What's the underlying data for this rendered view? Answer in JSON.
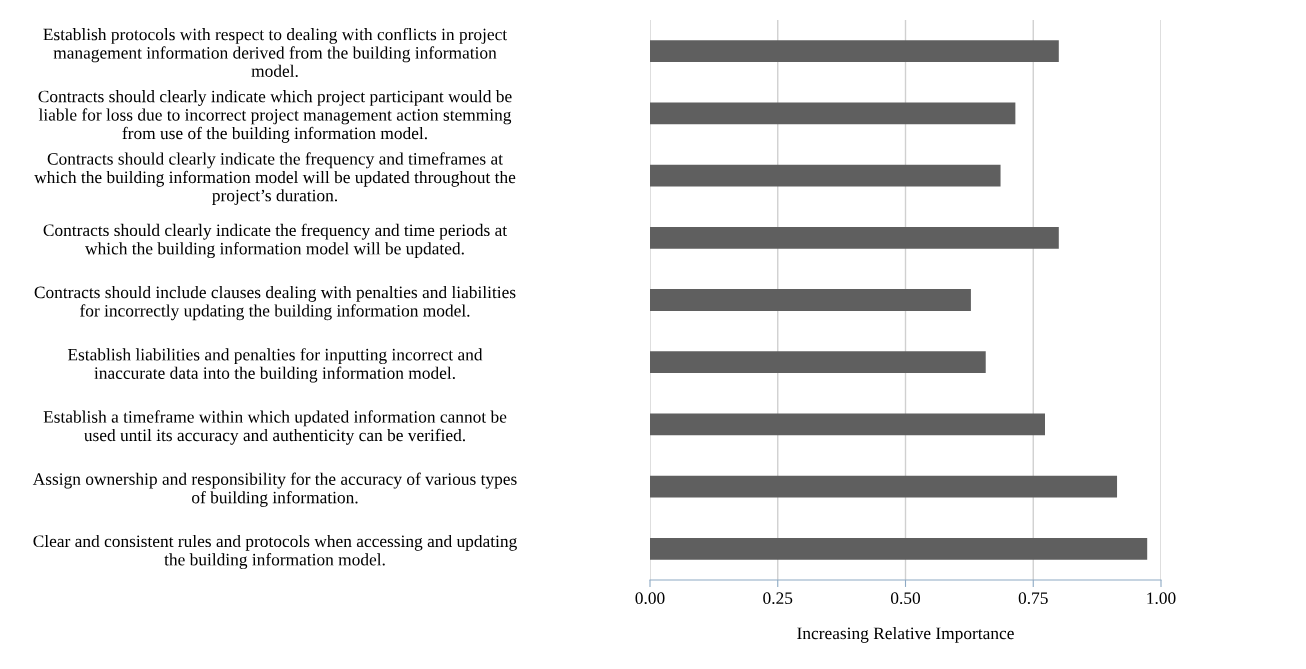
{
  "chart_data": {
    "type": "bar",
    "orientation": "horizontal",
    "xlabel": "Increasing Relative Importance",
    "categories": [
      "Establish protocols with respect to dealing with conflicts in project\nmanagement information derived from the building information\nmodel.",
      "Contracts should clearly indicate which project participant would be\nliable for loss due to incorrect project management action stemming\nfrom use of the building information model.",
      "Contracts should clearly indicate the frequency and timeframes at\nwhich the building information model will be updated throughout the\nproject’s duration.",
      "Contracts should clearly indicate the frequency and time periods at\nwhich the building information model will be updated.",
      "Contracts should include clauses dealing with penalties and liabilities\nfor incorrectly updating the building information model.",
      "Establish liabilities and penalties for inputting incorrect and\ninaccurate data into the building information model.",
      "Establish a timeframe within which updated information cannot be\nused until its accuracy and authenticity can be verified.",
      "Assign ownership and responsibility for the accuracy of various types\nof building information.",
      "Clear and consistent rules and protocols when accessing and updating\nthe building information model."
    ],
    "values": [
      0.8,
      0.715,
      0.686,
      0.8,
      0.628,
      0.657,
      0.773,
      0.914,
      0.973
    ],
    "color": "#5f5f5f",
    "xlim": [
      0,
      1
    ],
    "xticks": [
      {
        "value": 0,
        "label": "0.00"
      },
      {
        "value": 0.25,
        "label": "0.25"
      },
      {
        "value": 0.5,
        "label": "0.50"
      },
      {
        "value": 0.75,
        "label": "0.75"
      },
      {
        "value": 1,
        "label": "1.00"
      }
    ],
    "grid": "x"
  }
}
